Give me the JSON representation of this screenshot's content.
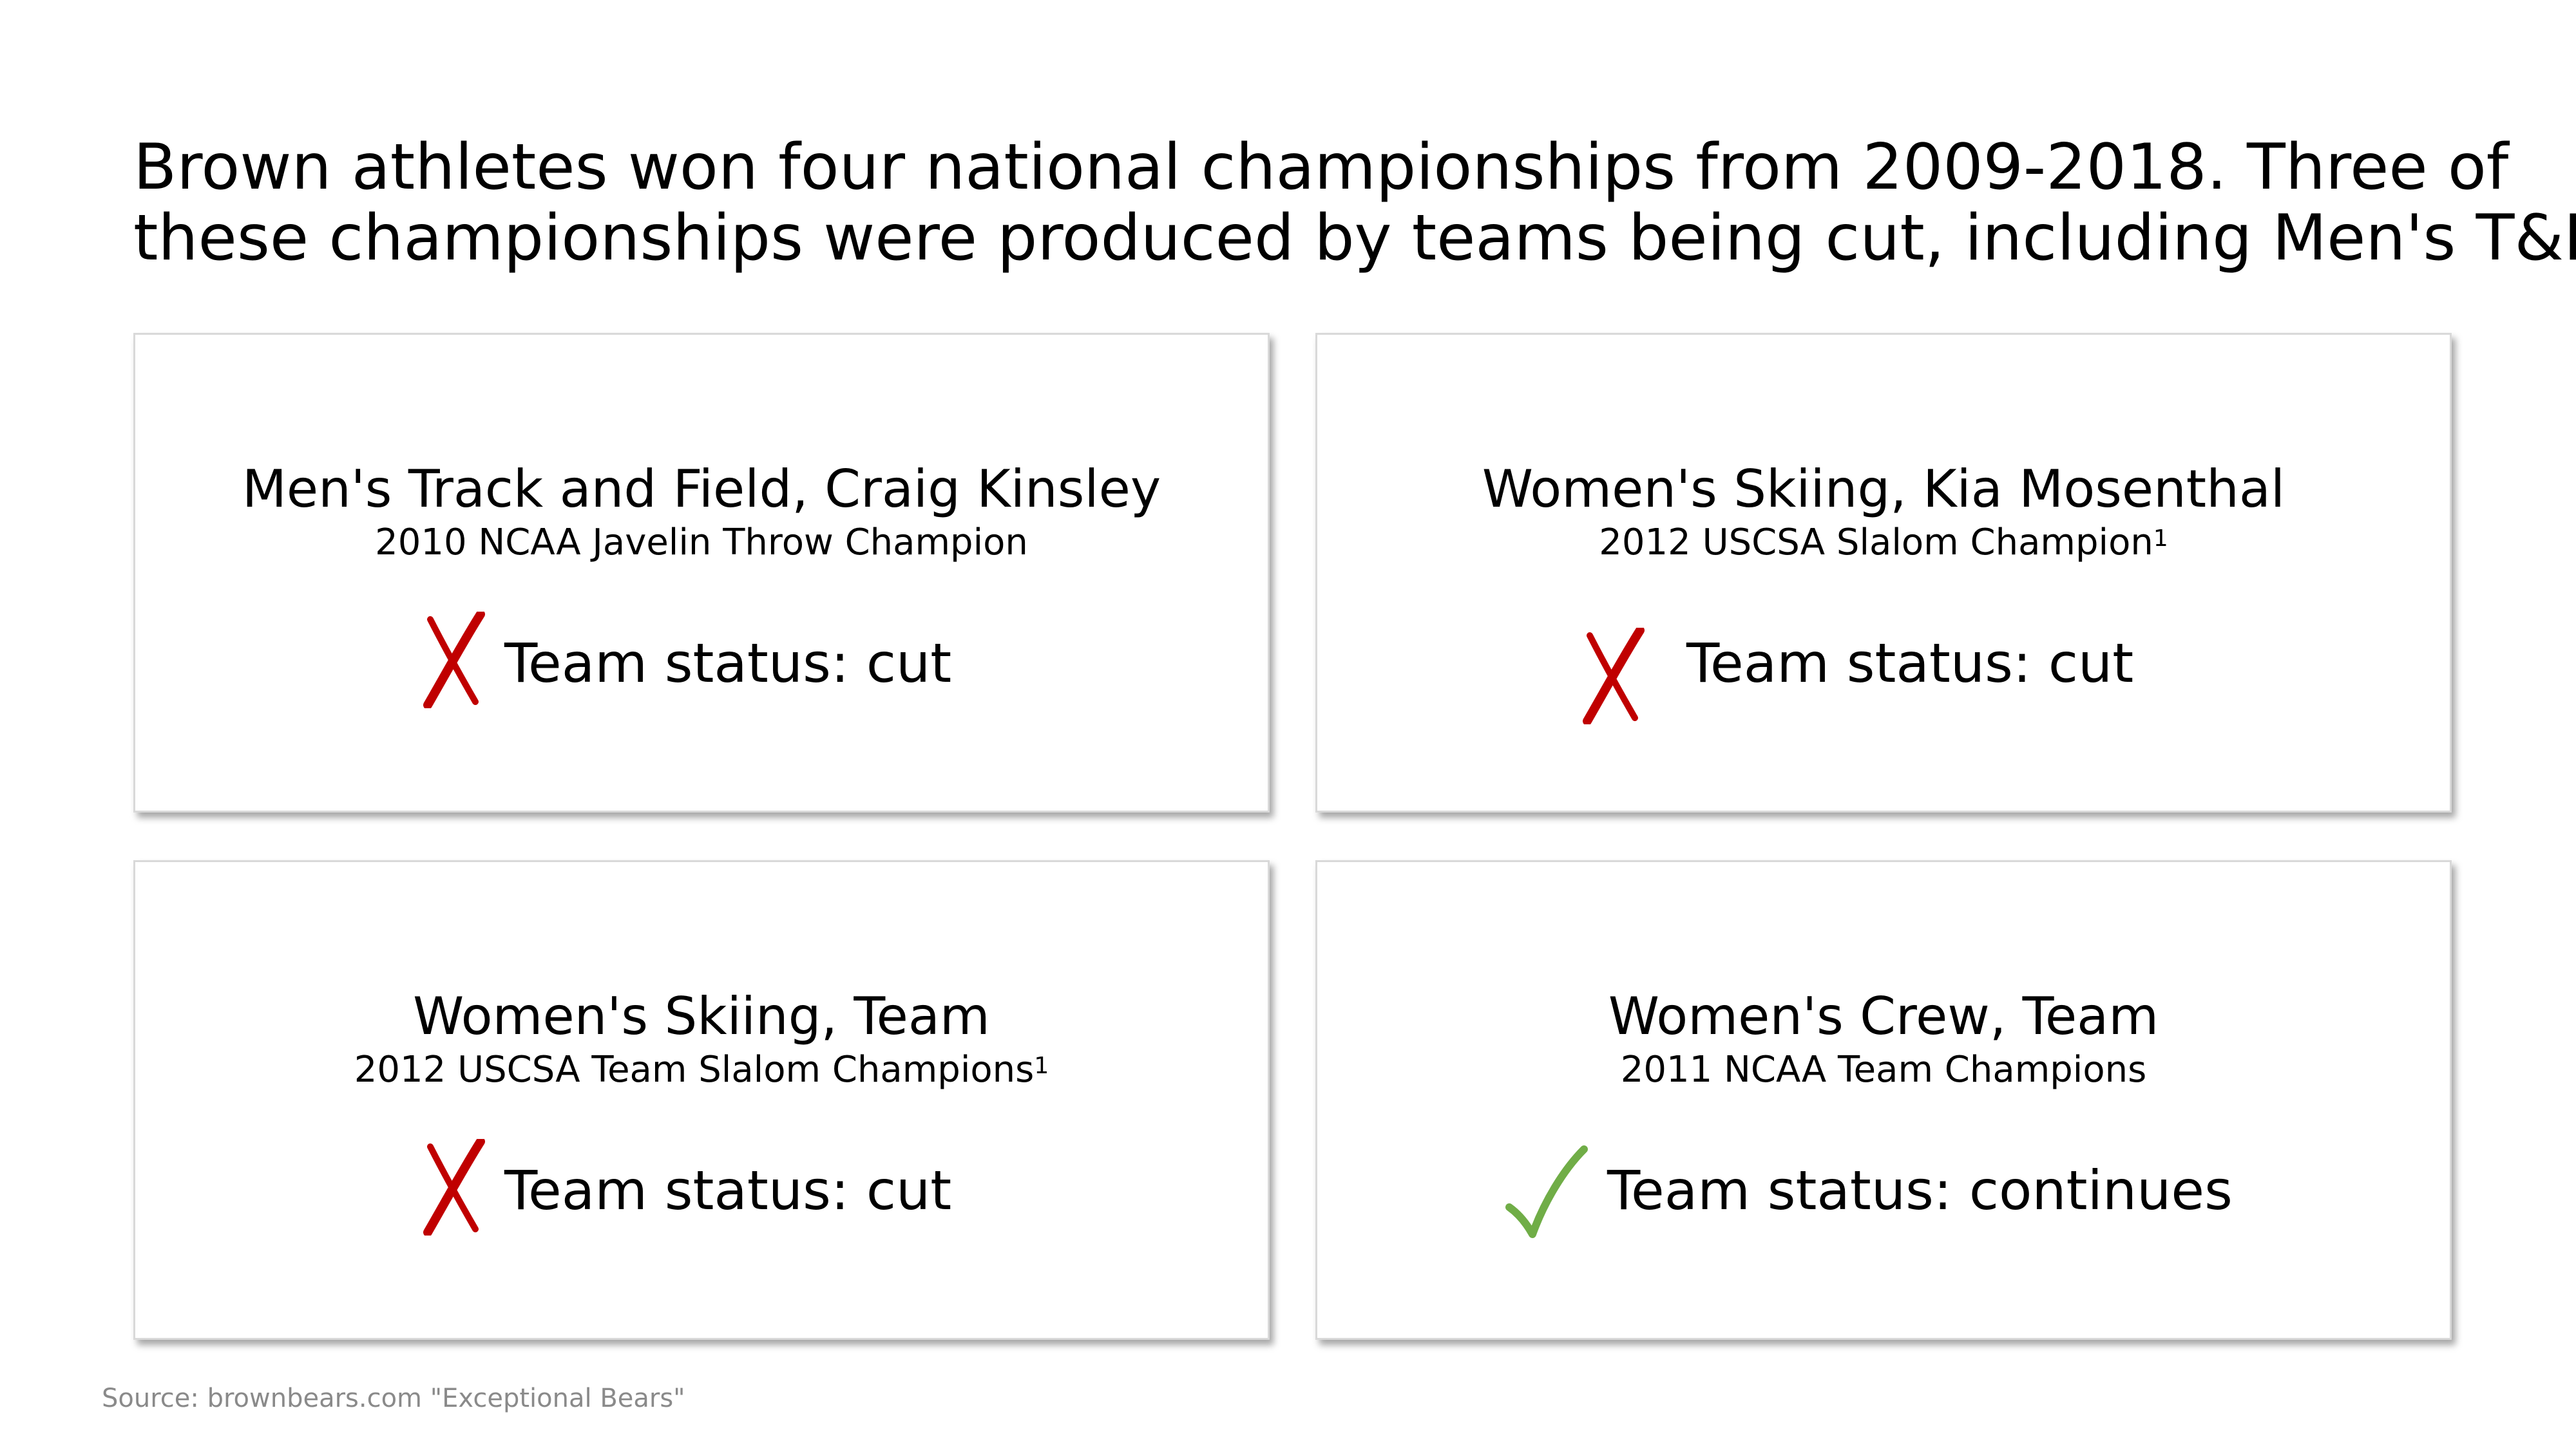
{
  "title": {
    "line1": "Brown athletes won four national championships from 2009-2018. Three of",
    "line2": "these championships were produced by teams being cut, including Men's T&F"
  },
  "cards": [
    {
      "title": "Men's Track and Field, Craig Kinsley",
      "subtitle": "2010 NCAA Javelin Throw Champion",
      "footnote": "",
      "status_label": "Team status: cut",
      "status_icon": "cross-icon",
      "status_color": "#c00000"
    },
    {
      "title": "Women's Skiing, Kia Mosenthal",
      "subtitle": "2012 USCSA Slalom Champion",
      "footnote": "1",
      "status_label": "Team status: cut",
      "status_icon": "cross-icon",
      "status_color": "#c00000"
    },
    {
      "title": "Women's Skiing, Team",
      "subtitle": "2012 USCSA Team Slalom Champions",
      "footnote": "1",
      "status_label": "Team status: cut",
      "status_icon": "cross-icon",
      "status_color": "#c00000"
    },
    {
      "title": "Women's Crew, Team",
      "subtitle": "2011 NCAA Team Champions",
      "footnote": "",
      "status_label": "Team status: continues",
      "status_icon": "check-icon",
      "status_color": "#70ad47"
    }
  ],
  "source": "Source: brownbears.com \"Exceptional Bears\""
}
